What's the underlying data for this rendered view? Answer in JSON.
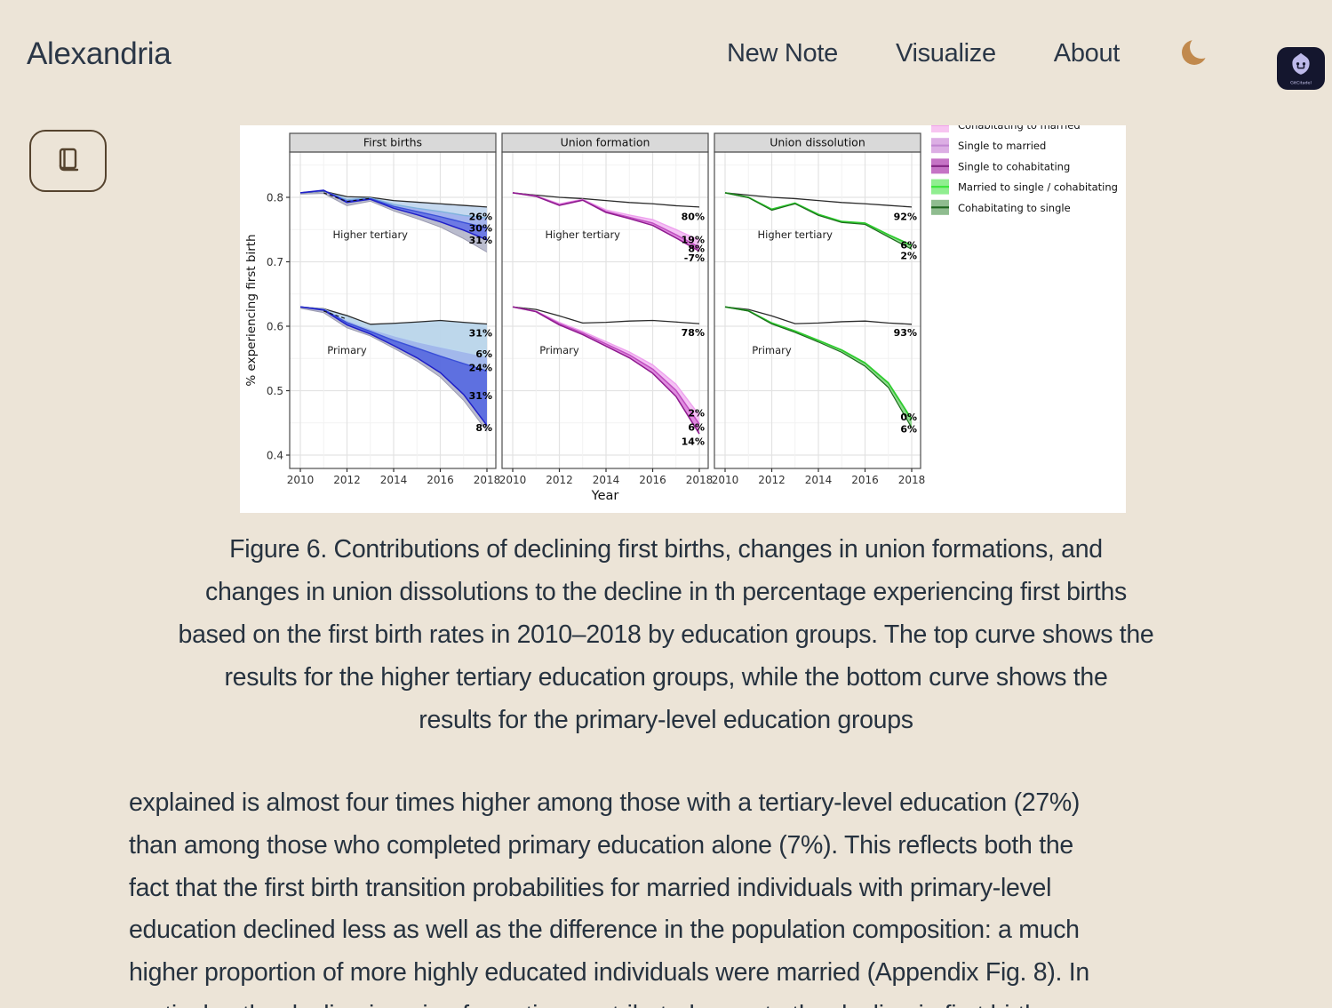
{
  "theme": {
    "background": "#ece4d7",
    "text": "#26323f",
    "moon_color": "#c1894d",
    "button_brown": "#55432e",
    "badge_bg": "#14162e",
    "badge_logo": "#bdb9ea",
    "figure_bg": "#ffffff"
  },
  "header": {
    "brand": "Alexandria",
    "nav": [
      {
        "label": "New Note"
      },
      {
        "label": "Visualize"
      },
      {
        "label": "About"
      }
    ],
    "badge_label": "GitCitadel"
  },
  "icons": {
    "dark_mode": "moon-icon",
    "reader_button": "book-icon",
    "badge": "gitcitadel-logo-icon"
  },
  "figure": {
    "caption_lines": [
      "Figure 6. Contributions of declining first births, changes in union formations, and",
      "changes in union dissolutions to the decline in th percentage experiencing first births",
      "based on the first birth rates in 2010–2018 by education groups. The top curve shows the",
      "results for the higher tertiary education groups, while the bottom curve shows the",
      "results for the primary-level education groups"
    ]
  },
  "article": {
    "lines": [
      "explained is almost four times higher among those with a tertiary-level education (27%)",
      "than among those who completed primary education alone (7%). This reflects both the",
      "fact that the first birth transition probabilities for married individuals with primary-level",
      "education declined less as well as the difference in the population composition: a much",
      "higher proportion of more highly educated individuals were married (Appendix Fig. 8). In",
      "particular, the decline in union formation contributed more to the decline in first births"
    ],
    "last_line_clipped": true
  },
  "chart_data": {
    "type": "line",
    "xlabel": "Year",
    "ylabel": "% experiencing first birth",
    "x": [
      2010,
      2011,
      2012,
      2013,
      2014,
      2015,
      2016,
      2017,
      2018
    ],
    "xticks": [
      2010,
      2012,
      2014,
      2016,
      2018
    ],
    "minor_xticks": [
      2011,
      2013,
      2015,
      2017
    ],
    "yticks": [
      0.4,
      0.5,
      0.6,
      0.7,
      0.8
    ],
    "minor_yticks": [
      0.45,
      0.55,
      0.65,
      0.75,
      0.85
    ],
    "ylim": [
      0.378,
      0.871
    ],
    "grid": true,
    "legend_position": "top-right",
    "legend": [
      {
        "label": "Cohabitating to married",
        "fill": "#f7c5f1",
        "line": "#ef8fe9"
      },
      {
        "label": "Single to married",
        "fill": "#dcaee4",
        "line": "#c287d2"
      },
      {
        "label": "Single to cohabitating",
        "fill": "#c573c5",
        "line": "#872987"
      },
      {
        "label": "Married to single / cohabitating",
        "fill": "#90ee90",
        "line": "#3ee63e"
      },
      {
        "label": "Cohabitating to single",
        "fill": "#8fbc8f",
        "line": "#1e641e"
      }
    ],
    "panels": [
      {
        "title": "First births",
        "groups": [
          {
            "label": "Higher tertiary",
            "label_x": 2013.0,
            "label_y": 0.7365,
            "series": [
              {
                "name": "reference",
                "color": "#2b2b2b",
                "width": 1.3,
                "values": [
                  0.807,
                  0.8095,
                  0.801,
                  0.8,
                  0.795,
                  0.7925,
                  0.79,
                  0.7875,
                  0.785
                ]
              },
              {
                "name": "comp-light",
                "color": "#7fb2dd",
                "width": 1.4,
                "values": [
                  0.807,
                  0.81,
                  0.7965,
                  0.799,
                  0.789,
                  0.783,
                  0.778,
                  0.772,
                  0.768
                ]
              },
              {
                "name": "comp-mid",
                "color": "#3a4fd8",
                "width": 1.4,
                "values": [
                  0.807,
                  0.8105,
                  0.794,
                  0.798,
                  0.786,
                  0.778,
                  0.77,
                  0.761,
                  0.7525
                ]
              },
              {
                "name": "comp-dark",
                "color": "#1f1fc8",
                "width": 1.5,
                "values": [
                  0.807,
                  0.811,
                  0.792,
                  0.797,
                  0.783,
                  0.773,
                  0.762,
                  0.749,
                  0.734
                ]
              },
              {
                "name": "shadow",
                "color": "#9a9ab0",
                "width": 1,
                "values": [
                  0.805,
                  0.806,
                  0.787,
                  0.794,
                  0.779,
                  0.767,
                  0.754,
                  0.736,
                  0.715
                ]
              },
              {
                "name": "observed-dashed",
                "color": "#111111",
                "width": 1.1,
                "dash": "4 3",
                "x": [
                  2011,
                  2012,
                  2013
                ],
                "values": [
                  0.807,
                  0.7935,
                  0.7985
                ]
              }
            ],
            "bands": [
              {
                "a": 0,
                "b": 1,
                "fill": "#c3d7ee",
                "opacity": 0.95
              },
              {
                "a": 1,
                "b": 2,
                "fill": "#9fb0ec",
                "opacity": 0.95
              },
              {
                "a": 2,
                "b": 3,
                "fill": "#6573e3",
                "opacity": 0.95
              },
              {
                "a": 3,
                "b": 4,
                "fill": "#aeb0c6",
                "opacity": 0.85
              }
            ],
            "end_labels": [
              {
                "text": "26%",
                "y": 0.7705
              },
              {
                "text": "30%",
                "y": 0.7525
              },
              {
                "text": "31%",
                "y": 0.7335
              }
            ]
          },
          {
            "label": "Primary",
            "label_x": 2012.0,
            "label_y": 0.557,
            "series": [
              {
                "name": "reference",
                "color": "#2b2b2b",
                "width": 1.3,
                "values": [
                  0.63,
                  0.627,
                  0.6165,
                  0.603,
                  0.6045,
                  0.6065,
                  0.609,
                  0.606,
                  0.6035
                ]
              },
              {
                "name": "comp-light",
                "color": "#bcd8ee",
                "width": 1.4,
                "values": [
                  0.63,
                  0.6265,
                  0.6095,
                  0.596,
                  0.5855,
                  0.576,
                  0.568,
                  0.5605,
                  0.553
                ]
              },
              {
                "name": "comp-mid",
                "color": "#3a4fd8",
                "width": 1.4,
                "values": [
                  0.63,
                  0.626,
                  0.6055,
                  0.592,
                  0.578,
                  0.566,
                  0.5535,
                  0.542,
                  0.5305
                ]
              },
              {
                "name": "comp-dark",
                "color": "#1f1fc8",
                "width": 1.5,
                "values": [
                  0.63,
                  0.625,
                  0.602,
                  0.588,
                  0.57,
                  0.551,
                  0.528,
                  0.494,
                  0.446
                ]
              },
              {
                "name": "shadow",
                "color": "#9a9ab0",
                "width": 1,
                "values": [
                  0.628,
                  0.621,
                  0.5975,
                  0.585,
                  0.566,
                  0.546,
                  0.521,
                  0.485,
                  0.437
                ]
              },
              {
                "name": "observed-dashed",
                "color": "#111111",
                "width": 1.1,
                "dash": "4 3",
                "x": [
                  2011,
                  2012
                ],
                "values": [
                  0.6235,
                  0.611
                ]
              }
            ],
            "bands": [
              {
                "a": 0,
                "b": 1,
                "fill": "#b9d5ea",
                "opacity": 0.95
              },
              {
                "a": 1,
                "b": 2,
                "fill": "#9db4ea",
                "opacity": 0.95
              },
              {
                "a": 2,
                "b": 3,
                "fill": "#5568de",
                "opacity": 0.95
              },
              {
                "a": 3,
                "b": 4,
                "fill": "#aeb0c6",
                "opacity": 0.85
              }
            ],
            "end_labels": [
              {
                "text": "31%",
                "y": 0.5895
              },
              {
                "text": "6%",
                "y": 0.5575
              },
              {
                "text": "24%",
                "y": 0.536
              },
              {
                "text": "31%",
                "y": 0.4925
              },
              {
                "text": "8%",
                "y": 0.4425
              }
            ]
          }
        ]
      },
      {
        "title": "Union formation",
        "groups": [
          {
            "label": "Higher tertiary",
            "label_x": 2013.0,
            "label_y": 0.7365,
            "series": [
              {
                "name": "reference",
                "color": "#2b2b2b",
                "width": 1.3,
                "values": [
                  0.807,
                  0.8035,
                  0.8,
                  0.798,
                  0.795,
                  0.792,
                  0.79,
                  0.787,
                  0.785
                ]
              },
              {
                "name": "comp-light",
                "color": "#ee9fee",
                "width": 1.3,
                "values": [
                  0.807,
                  0.8025,
                  0.79,
                  0.797,
                  0.7805,
                  0.7725,
                  0.7655,
                  0.75,
                  0.7335
                ]
              },
              {
                "name": "comp-mid",
                "color": "#c04ec0",
                "width": 1.5,
                "values": [
                  0.807,
                  0.802,
                  0.7885,
                  0.796,
                  0.778,
                  0.769,
                  0.76,
                  0.742,
                  0.7225
                ]
              },
              {
                "name": "comp-dark",
                "color": "#8f1b8f",
                "width": 1.5,
                "values": [
                  0.807,
                  0.8015,
                  0.7875,
                  0.7955,
                  0.7765,
                  0.767,
                  0.7565,
                  0.737,
                  0.7165
                ]
              }
            ],
            "bands": [
              {
                "a": 1,
                "b": 2,
                "fill": "#f3bef3",
                "opacity": 0.95
              },
              {
                "a": 2,
                "b": 3,
                "fill": "#dd86dd",
                "opacity": 0.95
              }
            ],
            "end_labels": [
              {
                "text": "80%",
                "y": 0.7705
              },
              {
                "text": "19%",
                "y": 0.7345
              },
              {
                "text": "8%",
                "y": 0.7205
              },
              {
                "text": "-7%",
                "y": 0.7065
              }
            ]
          },
          {
            "label": "Primary",
            "label_x": 2012.0,
            "label_y": 0.557,
            "series": [
              {
                "name": "reference",
                "color": "#2b2b2b",
                "width": 1.3,
                "values": [
                  0.63,
                  0.626,
                  0.616,
                  0.605,
                  0.606,
                  0.608,
                  0.609,
                  0.6065,
                  0.604
                ]
              },
              {
                "name": "comp-light",
                "color": "#ee9fee",
                "width": 1.3,
                "values": [
                  0.63,
                  0.6235,
                  0.606,
                  0.592,
                  0.576,
                  0.56,
                  0.54,
                  0.51,
                  0.462
                ]
              },
              {
                "name": "comp-mid",
                "color": "#c04ec0",
                "width": 1.5,
                "values": [
                  0.63,
                  0.623,
                  0.604,
                  0.5895,
                  0.5725,
                  0.5555,
                  0.5335,
                  0.5005,
                  0.448
                ]
              },
              {
                "name": "comp-dark",
                "color": "#8f1b8f",
                "width": 1.5,
                "values": [
                  0.63,
                  0.6225,
                  0.602,
                  0.587,
                  0.569,
                  0.551,
                  0.527,
                  0.491,
                  0.433
                ]
              }
            ],
            "bands": [
              {
                "a": 1,
                "b": 2,
                "fill": "#f3bef3",
                "opacity": 0.95
              },
              {
                "a": 2,
                "b": 3,
                "fill": "#dd86dd",
                "opacity": 0.95
              }
            ],
            "end_labels": [
              {
                "text": "78%",
                "y": 0.5905
              },
              {
                "text": "2%",
                "y": 0.4655
              },
              {
                "text": "6%",
                "y": 0.4435
              },
              {
                "text": "14%",
                "y": 0.4215
              }
            ]
          }
        ]
      },
      {
        "title": "Union dissolution",
        "groups": [
          {
            "label": "Higher tertiary",
            "label_x": 2013.0,
            "label_y": 0.7365,
            "series": [
              {
                "name": "reference",
                "color": "#2b2b2b",
                "width": 1.3,
                "values": [
                  0.807,
                  0.8035,
                  0.8,
                  0.798,
                  0.795,
                  0.792,
                  0.79,
                  0.7875,
                  0.785
                ]
              },
              {
                "name": "comp-bright",
                "color": "#2ecc2e",
                "width": 1.8,
                "values": [
                  0.807,
                  0.8,
                  0.7815,
                  0.791,
                  0.7735,
                  0.7625,
                  0.76,
                  0.742,
                  0.7255
                ]
              },
              {
                "name": "comp-dark",
                "color": "#1b6b1b",
                "width": 1.2,
                "values": [
                  0.807,
                  0.7995,
                  0.78,
                  0.79,
                  0.772,
                  0.761,
                  0.758,
                  0.7385,
                  0.7195
                ]
              }
            ],
            "bands": [
              {
                "a": 1,
                "b": 2,
                "fill": "#8ad88a",
                "opacity": 0.95
              }
            ],
            "end_labels": [
              {
                "text": "92%",
                "y": 0.7705
              },
              {
                "text": "6%",
                "y": 0.7265
              },
              {
                "text": "2%",
                "y": 0.71
              }
            ]
          },
          {
            "label": "Primary",
            "label_x": 2012.0,
            "label_y": 0.557,
            "series": [
              {
                "name": "reference",
                "color": "#2b2b2b",
                "width": 1.3,
                "values": [
                  0.63,
                  0.626,
                  0.616,
                  0.604,
                  0.605,
                  0.607,
                  0.608,
                  0.605,
                  0.603
                ]
              },
              {
                "name": "comp-bright",
                "color": "#2ecc2e",
                "width": 1.8,
                "values": [
                  0.63,
                  0.624,
                  0.605,
                  0.5925,
                  0.578,
                  0.563,
                  0.543,
                  0.512,
                  0.4555
                ]
              },
              {
                "name": "comp-dark",
                "color": "#1b6b1b",
                "width": 1.2,
                "values": [
                  0.63,
                  0.6235,
                  0.6035,
                  0.5905,
                  0.5755,
                  0.5595,
                  0.538,
                  0.505,
                  0.4425
                ]
              }
            ],
            "bands": [
              {
                "a": 1,
                "b": 2,
                "fill": "#8ad88a",
                "opacity": 0.95
              }
            ],
            "end_labels": [
              {
                "text": "93%",
                "y": 0.5905
              },
              {
                "text": "0%",
                "y": 0.459
              },
              {
                "text": "6%",
                "y": 0.4405
              }
            ]
          }
        ]
      }
    ]
  }
}
